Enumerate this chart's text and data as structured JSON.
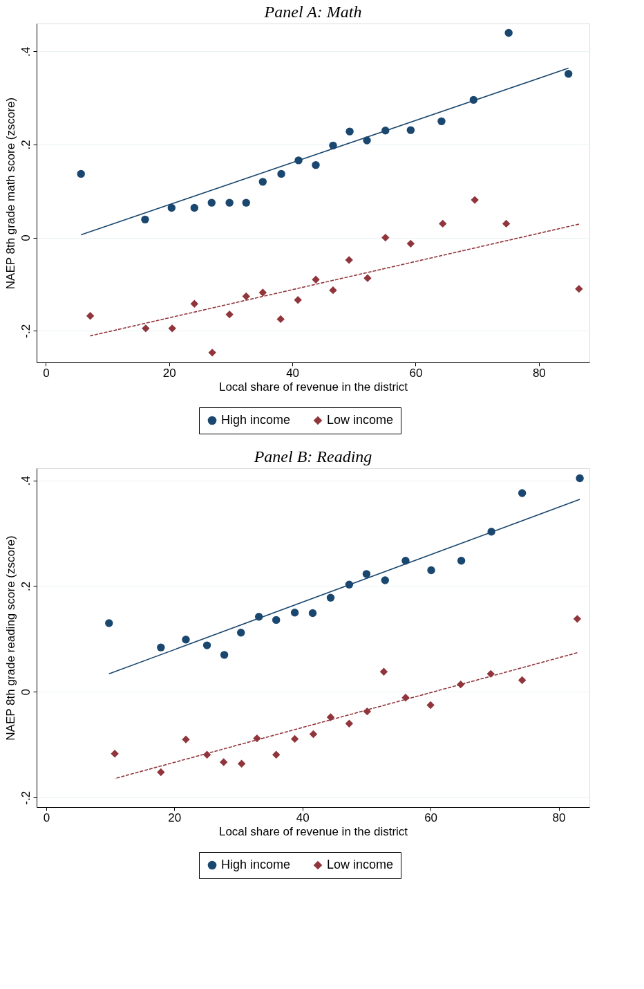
{
  "chart_data": [
    {
      "type": "scatter",
      "title": "Panel A: Math",
      "xlabel": "Local share of revenue in the district",
      "ylabel": "NAEP 8th grade math score (zscore)",
      "xlim": [
        -1.5,
        88.2
      ],
      "ylim": [
        -0.268,
        0.46
      ],
      "xticks": [
        0,
        20,
        40,
        60,
        80
      ],
      "yticks": [
        {
          "value": -0.2,
          "label": "-.2"
        },
        {
          "value": 0,
          "label": "0"
        },
        {
          "value": 0.2,
          "label": ".2"
        },
        {
          "value": 0.4,
          "label": ".4"
        }
      ],
      "grid": "y",
      "legend": "bottom",
      "series": [
        {
          "name": "High income",
          "marker": "circle",
          "color": "#1a476f",
          "x": [
            5.7,
            16.1,
            20.4,
            24.1,
            26.9,
            29.8,
            32.5,
            35.2,
            38.2,
            41.0,
            43.8,
            46.6,
            49.3,
            52.1,
            55.1,
            59.2,
            64.2,
            69.4,
            75.1,
            84.8
          ],
          "values": [
            0.137,
            0.039,
            0.064,
            0.064,
            0.075,
            0.075,
            0.075,
            0.12,
            0.137,
            0.166,
            0.156,
            0.198,
            0.228,
            0.209,
            0.23,
            0.231,
            0.25,
            0.296,
            0.44,
            0.352
          ]
        },
        {
          "name": "Low income",
          "marker": "diamond",
          "color": "#90353b",
          "x": [
            7.2,
            16.2,
            20.5,
            24.1,
            27.0,
            29.8,
            32.5,
            35.2,
            38.1,
            40.9,
            43.8,
            46.6,
            49.2,
            52.2,
            55.1,
            59.2,
            64.4,
            69.6,
            74.7,
            86.5
          ],
          "values": [
            -0.168,
            -0.195,
            -0.195,
            -0.142,
            -0.247,
            -0.165,
            -0.126,
            -0.118,
            -0.175,
            -0.134,
            -0.09,
            -0.113,
            -0.048,
            -0.087,
            0.0,
            -0.013,
            0.03,
            0.081,
            0.03,
            -0.11
          ]
        },
        {
          "type": "line",
          "line_style": "solid",
          "color": "#1a476f",
          "x": [
            5.7,
            84.8
          ],
          "values": [
            0.006,
            0.364
          ]
        },
        {
          "type": "line",
          "line_style": "dashed",
          "color": "#90353b",
          "x": [
            7.2,
            86.5
          ],
          "values": [
            -0.211,
            0.029
          ]
        }
      ]
    },
    {
      "type": "scatter",
      "title": "Panel B: Reading",
      "xlabel": "Local share of revenue in the district",
      "ylabel": "NAEP 8th grade reading score (zscore)",
      "xlim": [
        -1.5,
        84.8
      ],
      "ylim": [
        -0.218,
        0.423
      ],
      "xticks": [
        0,
        20,
        40,
        60,
        80
      ],
      "yticks": [
        {
          "value": -0.2,
          "label": "-.2"
        },
        {
          "value": 0,
          "label": "0"
        },
        {
          "value": 0.2,
          "label": ".2"
        },
        {
          "value": 0.4,
          "label": ".4"
        }
      ],
      "grid": "y",
      "legend": "bottom",
      "series": [
        {
          "name": "High income",
          "marker": "circle",
          "color": "#1a476f",
          "x": [
            9.8,
            17.9,
            21.8,
            25.1,
            27.8,
            30.4,
            33.2,
            35.9,
            38.8,
            41.6,
            44.4,
            47.3,
            50.0,
            52.9,
            56.1,
            60.1,
            64.8,
            69.5,
            74.3,
            83.3
          ],
          "values": [
            0.13,
            0.084,
            0.099,
            0.088,
            0.07,
            0.112,
            0.142,
            0.136,
            0.15,
            0.149,
            0.178,
            0.203,
            0.223,
            0.211,
            0.248,
            0.23,
            0.248,
            0.303,
            0.376,
            0.404
          ]
        },
        {
          "name": "Low income",
          "marker": "diamond",
          "color": "#90353b",
          "x": [
            10.7,
            17.9,
            21.8,
            25.1,
            27.7,
            30.5,
            32.9,
            35.9,
            38.8,
            41.7,
            44.4,
            47.3,
            50.1,
            52.7,
            56.1,
            60.0,
            64.7,
            69.4,
            74.3,
            82.9
          ],
          "values": [
            -0.117,
            -0.152,
            -0.09,
            -0.119,
            -0.133,
            -0.136,
            -0.088,
            -0.119,
            -0.089,
            -0.08,
            -0.048,
            -0.06,
            -0.037,
            0.038,
            -0.011,
            -0.025,
            0.014,
            0.034,
            0.022,
            0.138
          ]
        },
        {
          "type": "line",
          "line_style": "solid",
          "color": "#1a476f",
          "x": [
            9.8,
            83.3
          ],
          "values": [
            0.034,
            0.364
          ]
        },
        {
          "type": "line",
          "line_style": "dashed",
          "color": "#90353b",
          "x": [
            10.7,
            82.9
          ],
          "values": [
            -0.164,
            0.074
          ]
        }
      ]
    }
  ]
}
